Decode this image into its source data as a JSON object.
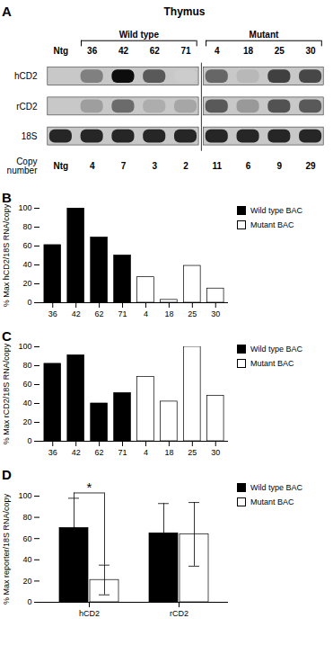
{
  "chart_data": [
    {
      "type": "heatmap",
      "title": "Thymus",
      "annotations": [
        {
          "text": "A"
        }
      ],
      "categories": [
        "Ntg",
        "36",
        "42",
        "62",
        "71",
        "4",
        "18",
        "25",
        "30"
      ],
      "rows": [
        "hCD2",
        "rCD2",
        "18S"
      ],
      "cells": [
        [
          0.0,
          0.5,
          0.95,
          0.65,
          0.2,
          0.6,
          0.28,
          0.75,
          0.72
        ],
        [
          0.0,
          0.38,
          0.58,
          0.32,
          0.35,
          0.65,
          0.4,
          0.68,
          0.65
        ],
        [
          0.85,
          0.85,
          0.85,
          0.85,
          0.85,
          0.85,
          0.85,
          0.85,
          0.85
        ]
      ],
      "groups": [
        {
          "name": "Wild type",
          "categories": [
            "36",
            "42",
            "62",
            "71"
          ]
        },
        {
          "name": "Mutant",
          "categories": [
            "4",
            "18",
            "25",
            "30"
          ]
        }
      ],
      "copy_number_label": "Copy\nnumber",
      "copy_numbers": [
        "Ntg",
        "4",
        "7",
        "3",
        "2",
        "11",
        "6",
        "9",
        "29"
      ]
    },
    {
      "type": "bar",
      "annotations": [
        {
          "text": "B"
        }
      ],
      "categories": [
        "36",
        "42",
        "62",
        "71",
        "4",
        "18",
        "25",
        "30"
      ],
      "series": [
        {
          "name": "Wild type BAC",
          "color": "black",
          "values": [
            61,
            100,
            69,
            50,
            null,
            null,
            null,
            null
          ]
        },
        {
          "name": "Mutant BAC",
          "color": "white",
          "values": [
            null,
            null,
            null,
            null,
            27,
            3,
            39,
            15
          ]
        }
      ],
      "ylabel": "% Max hCD2/18S RNA/copy",
      "ylim": [
        0,
        100
      ],
      "yticks": [
        0,
        20,
        40,
        60,
        80,
        100
      ],
      "legend": "right"
    },
    {
      "type": "bar",
      "annotations": [
        {
          "text": "C"
        }
      ],
      "categories": [
        "36",
        "42",
        "62",
        "71",
        "4",
        "18",
        "25",
        "30"
      ],
      "series": [
        {
          "name": "Wild type BAC",
          "color": "black",
          "values": [
            82,
            91,
            40,
            51,
            null,
            null,
            null,
            null
          ]
        },
        {
          "name": "Mutant BAC",
          "color": "white",
          "values": [
            null,
            null,
            null,
            null,
            68,
            42,
            100,
            48
          ]
        }
      ],
      "ylabel": "% Max rCD2/18S RNA/copy",
      "ylim": [
        0,
        100
      ],
      "yticks": [
        0,
        20,
        40,
        60,
        80,
        100
      ],
      "legend": "right"
    },
    {
      "type": "bar",
      "annotations": [
        {
          "text": "D"
        },
        {
          "text": "*",
          "category": "hCD2"
        }
      ],
      "categories": [
        "hCD2",
        "rCD2"
      ],
      "series": [
        {
          "name": "Wild type BAC",
          "color": "black",
          "values": [
            70,
            65
          ],
          "errors": [
            28,
            28
          ]
        },
        {
          "name": "Mutant BAC",
          "color": "white",
          "values": [
            21,
            64
          ],
          "errors": [
            14,
            30
          ]
        }
      ],
      "ylabel": "% Max reporter/18S RNA/copy",
      "ylim": [
        0,
        100
      ],
      "yticks": [
        0,
        20,
        40,
        60,
        80,
        100
      ],
      "legend": "right"
    }
  ]
}
